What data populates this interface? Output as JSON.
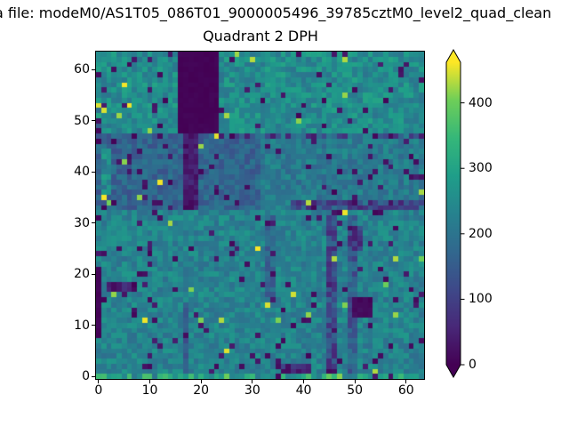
{
  "figure": {
    "background": "#ffffff",
    "text_color": "#000000",
    "suptitle": "a file: modeM0/AS1T05_086T01_9000005496_39785cztM0_level2_quad_clean",
    "title": "Quadrant 2 DPH"
  },
  "chart_data": {
    "type": "heatmap",
    "title": "Quadrant 2 DPH",
    "grid": {
      "ncols": 64,
      "nrows": 64
    },
    "xlim": [
      -0.5,
      63.5
    ],
    "ylim": [
      -0.5,
      63.5
    ],
    "xticks": [
      0,
      10,
      20,
      30,
      40,
      50,
      60
    ],
    "yticks": [
      0,
      10,
      20,
      30,
      40,
      50,
      60
    ],
    "grid_lines": false,
    "colormap": "viridis",
    "colormap_stops": [
      [
        0.0,
        "#440154"
      ],
      [
        0.125,
        "#482878"
      ],
      [
        0.25,
        "#3e4989"
      ],
      [
        0.375,
        "#31688e"
      ],
      [
        0.5,
        "#26828e"
      ],
      [
        0.625,
        "#1f9e89"
      ],
      [
        0.75,
        "#35b779"
      ],
      [
        0.875,
        "#6ece58"
      ],
      [
        1.0,
        "#fde725"
      ]
    ],
    "colorbar": {
      "ticks": [
        0,
        100,
        200,
        300,
        400
      ],
      "vmin": 0,
      "vmax": 462,
      "extend": "both",
      "position": "right"
    },
    "value_model": {
      "comment_visible_structure": "estimated counts per detector pixel; typical background ~230, dead block near (16-23,48-63), bluish band ~165 at y33-47 left half, dark streaks at x45-46 and below dead block, bright bottom row, scattered dead (~0) and hot (~450) pixels",
      "seed": 20240786,
      "base": {
        "v": 232,
        "n": 46
      },
      "regions": [
        {
          "name": "top-band",
          "x": [
            0,
            63
          ],
          "y": [
            48,
            63
          ],
          "v": 252,
          "n": 52
        },
        {
          "name": "left-edge-brights",
          "x": [
            0,
            0
          ],
          "y": [
            49,
            55
          ],
          "v": 300,
          "n": 150
        },
        {
          "name": "dead-block",
          "x": [
            16,
            23
          ],
          "y": [
            48,
            63
          ],
          "v": 4,
          "n": 5,
          "solid": true
        },
        {
          "name": "mid-left-blue",
          "x": [
            0,
            31
          ],
          "y": [
            33,
            47
          ],
          "v": 168,
          "n": 42
        },
        {
          "name": "left-green-streak",
          "x": [
            1,
            2
          ],
          "y": [
            36,
            44
          ],
          "v": 250,
          "n": 60
        },
        {
          "name": "block-shadow-streak",
          "x": [
            17,
            19
          ],
          "y": [
            33,
            47
          ],
          "v": 38,
          "n": 32,
          "solid": true
        },
        {
          "name": "mid-right",
          "x": [
            32,
            63
          ],
          "y": [
            33,
            46
          ],
          "v": 212,
          "n": 46
        },
        {
          "name": "broken-row-47",
          "x": [
            24,
            63
          ],
          "y": [
            47,
            47
          ],
          "v": 120,
          "n": 135
        },
        {
          "name": "dark-row-33",
          "x": [
            38,
            63
          ],
          "y": [
            33,
            34
          ],
          "v": 130,
          "n": 85
        },
        {
          "name": "dark-col-45",
          "x": [
            45,
            46
          ],
          "y": [
            0,
            31
          ],
          "v": 115,
          "n": 60
        },
        {
          "name": "blue-col-49",
          "x": [
            49,
            50
          ],
          "y": [
            0,
            31
          ],
          "v": 150,
          "n": 55
        },
        {
          "name": "blue-col-33",
          "x": [
            33,
            34
          ],
          "y": [
            14,
            31
          ],
          "v": 170,
          "n": 40
        },
        {
          "name": "dark-blob-50",
          "x": [
            50,
            53
          ],
          "y": [
            12,
            15
          ],
          "v": 12,
          "n": 12,
          "solid": true
        },
        {
          "name": "dark-patch-49",
          "x": [
            49,
            51
          ],
          "y": [
            25,
            29
          ],
          "v": 85,
          "n": 60
        },
        {
          "name": "faint-streak-17",
          "x": [
            17,
            17
          ],
          "y": [
            1,
            14
          ],
          "v": 150,
          "n": 35
        },
        {
          "name": "left-edge-dark",
          "x": [
            0,
            0
          ],
          "y": [
            8,
            21
          ],
          "v": 5,
          "n": 7,
          "solid": true
        },
        {
          "name": "dark-seg-left",
          "x": [
            2,
            7
          ],
          "y": [
            17,
            18
          ],
          "v": 45,
          "n": 45
        },
        {
          "name": "dark-seg-bottom",
          "x": [
            36,
            41
          ],
          "y": [
            1,
            2
          ],
          "v": 60,
          "n": 60
        },
        {
          "name": "bottom-row",
          "x": [
            0,
            63
          ],
          "y": [
            0,
            0
          ],
          "v": 285,
          "n": 85
        },
        {
          "name": "bottom-yellows",
          "x": [
            44,
            47
          ],
          "y": [
            0,
            0
          ],
          "v": 390,
          "n": 80
        }
      ],
      "outliers": {
        "dark_prob": 0.045,
        "dark_min": 4,
        "dark_span": 40,
        "bright_prob": 0.013,
        "bright_min": 400,
        "bright_span": 60
      }
    }
  }
}
